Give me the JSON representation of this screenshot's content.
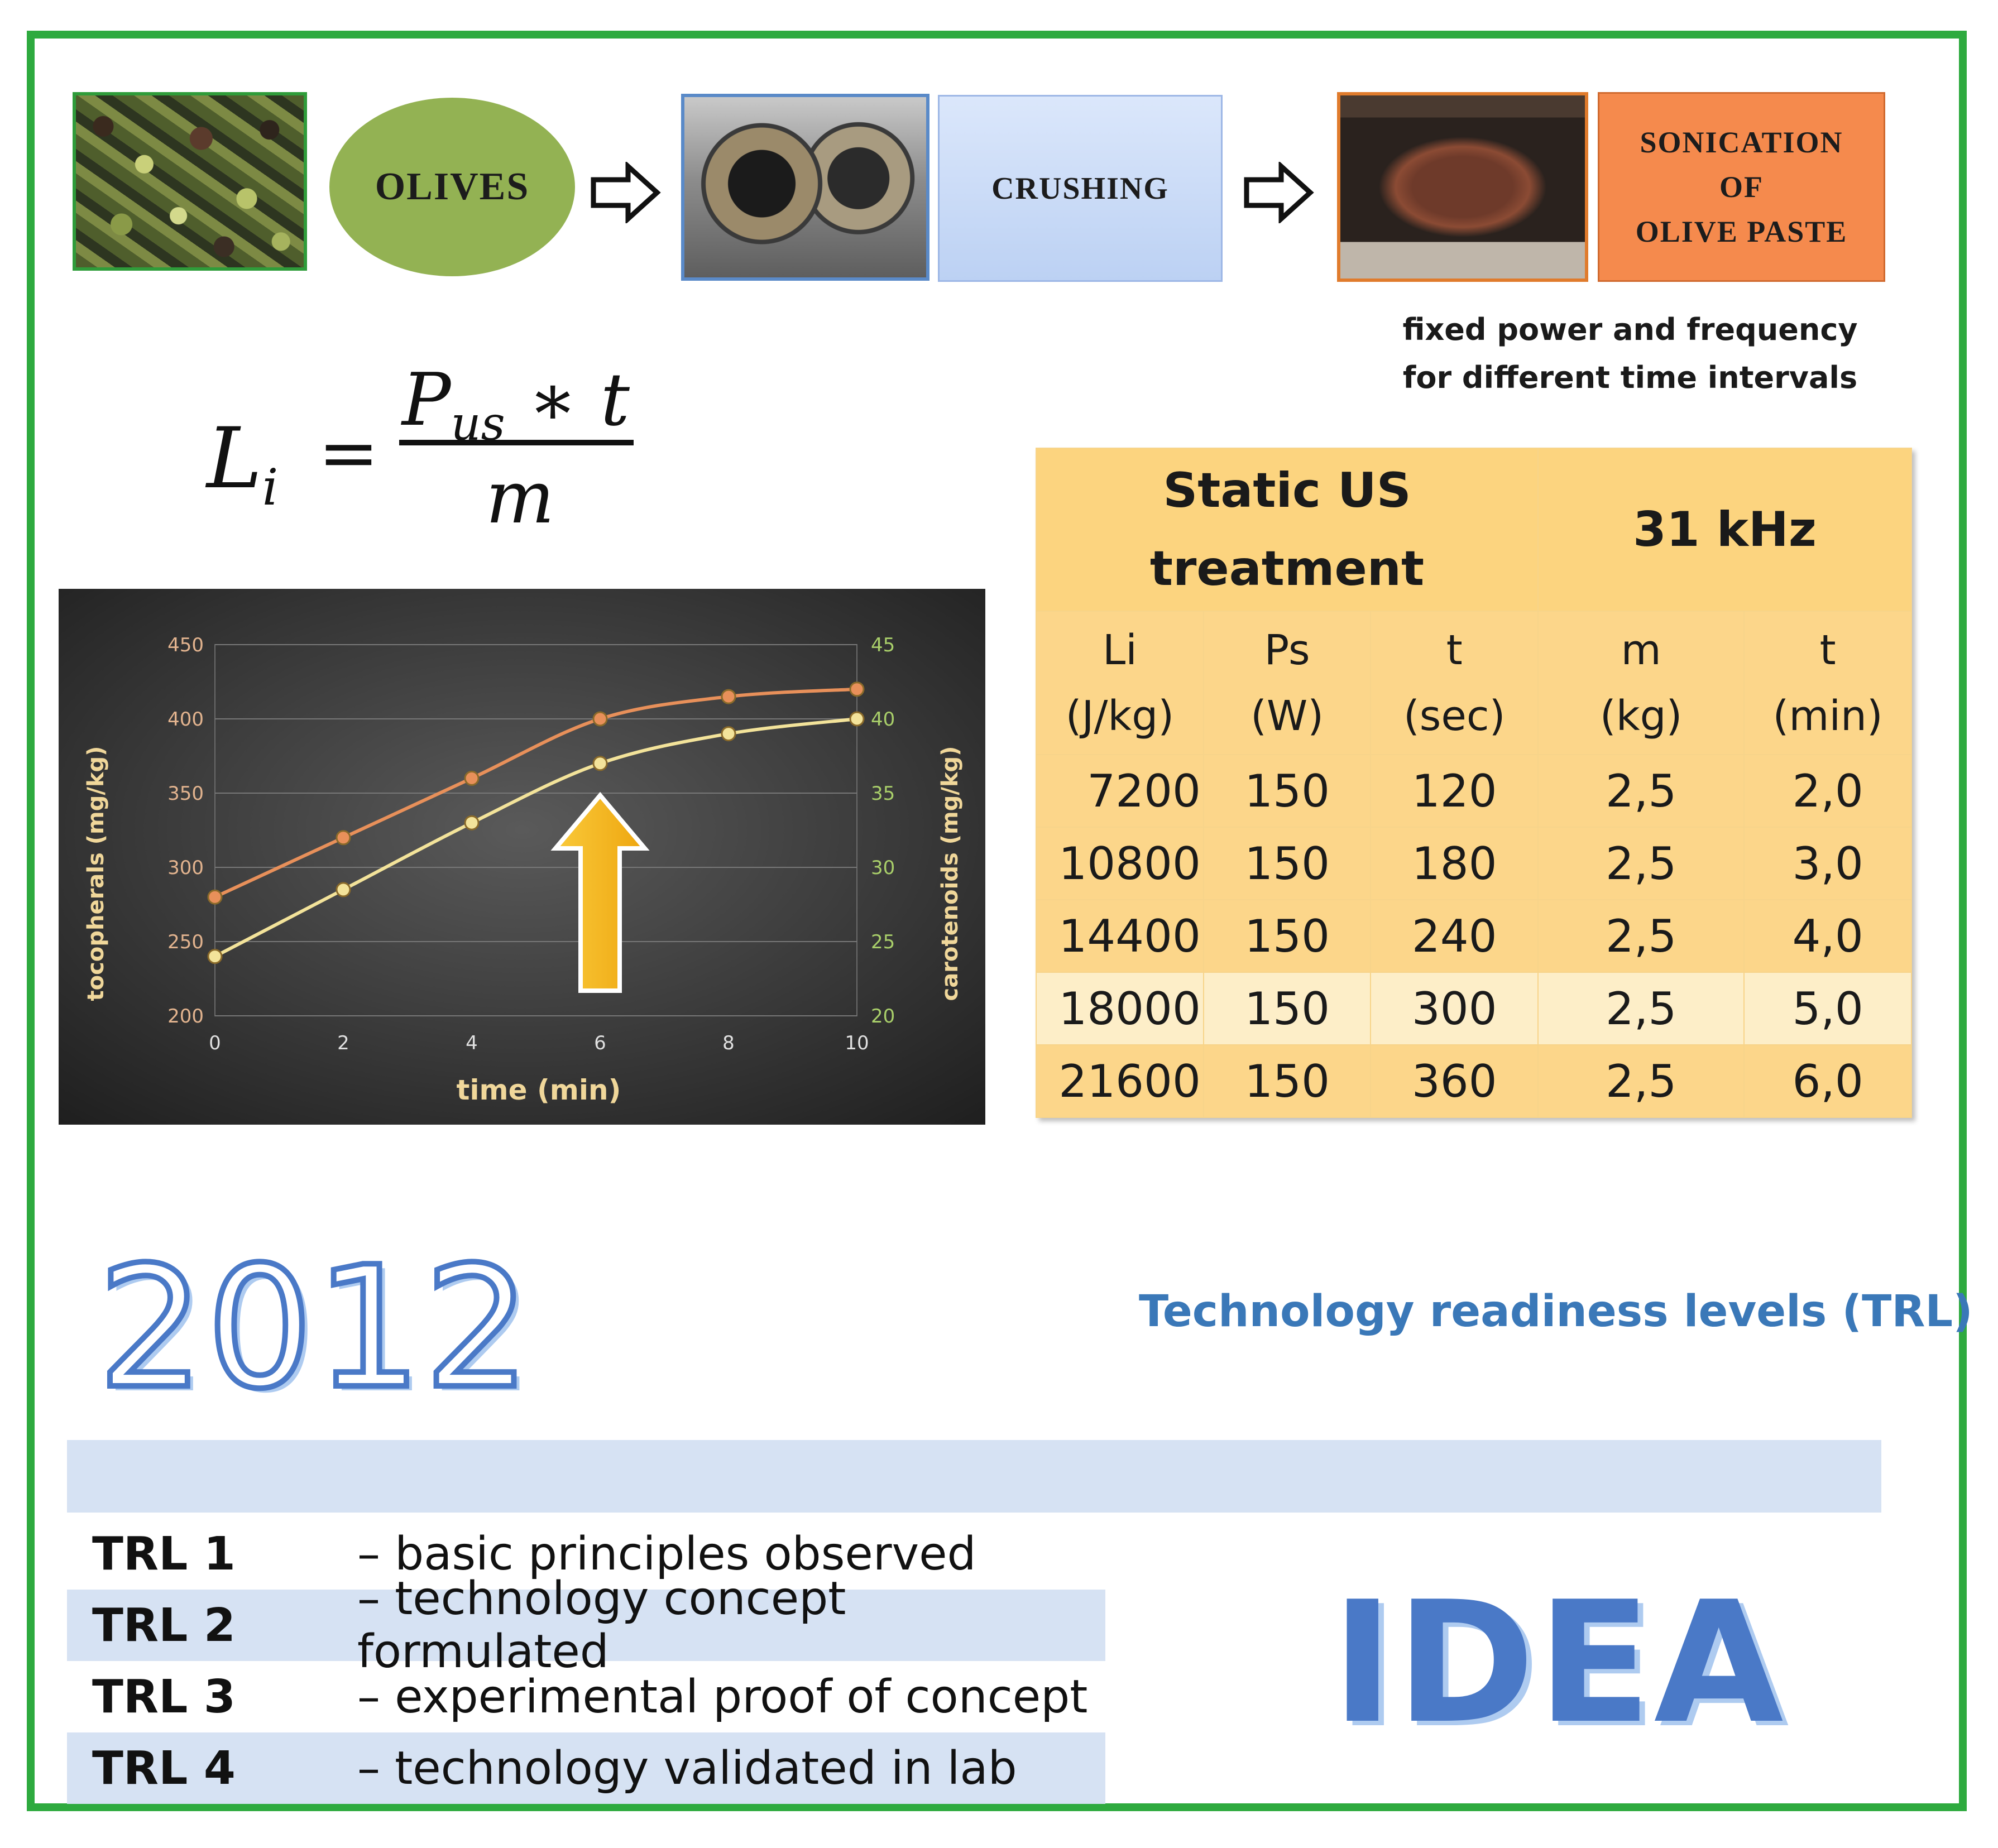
{
  "flow": {
    "olives_label": "OLIVES",
    "crushing_label": "CRUSHING",
    "sonication_lines": [
      "SONICATION",
      "OF",
      "OLIVE PASTE"
    ],
    "note_lines": [
      "fixed power and frequency",
      "for different time intervals"
    ]
  },
  "formula": {
    "lhs": "L",
    "lhs_sub": "i",
    "eq": "=",
    "num": "P",
    "num_sub": "us",
    "num_rest": " ∗ t",
    "den": "m"
  },
  "chart_data": {
    "type": "line",
    "title": "",
    "xlabel": "time (min)",
    "ylabel": "tocopherals (mg/kg)",
    "y2label": "carotenoids (mg/kg)",
    "x": [
      0,
      2,
      4,
      6,
      8,
      10
    ],
    "xlim": [
      0,
      10
    ],
    "ylim": [
      200,
      450
    ],
    "y2lim": [
      20,
      45
    ],
    "xticks": [
      "0",
      "2",
      "4",
      "6",
      "8",
      "10"
    ],
    "yticks": [
      "200",
      "250",
      "300",
      "350",
      "400",
      "450"
    ],
    "y2ticks": [
      "20",
      "25",
      "30",
      "35",
      "40",
      "45"
    ],
    "grid": true,
    "series": [
      {
        "axis": "left",
        "color": "#e8905a",
        "values": [
          280,
          320,
          360,
          400,
          415,
          420
        ]
      },
      {
        "axis": "right",
        "color": "#f3e39a",
        "values": [
          24,
          28.5,
          33,
          37,
          39,
          40
        ]
      }
    ],
    "annotation": {
      "type": "arrow",
      "x": 6,
      "color": "#f6b51c"
    }
  },
  "table": {
    "title_lines": [
      "Static US",
      "treatment"
    ],
    "frequency": "31 kHz",
    "columns": [
      [
        "Li",
        "(J/kg)"
      ],
      [
        "Ps",
        "(W)"
      ],
      [
        "t",
        "(sec)"
      ],
      [
        "m",
        "(kg)"
      ],
      [
        "t",
        "(min)"
      ]
    ],
    "rows": [
      [
        "7200",
        "150",
        "120",
        "2,5",
        "2,0"
      ],
      [
        "10800",
        "150",
        "180",
        "2,5",
        "3,0"
      ],
      [
        "14400",
        "150",
        "240",
        "2,5",
        "4,0"
      ],
      [
        "18000",
        "150",
        "300",
        "2,5",
        "5,0"
      ],
      [
        "21600",
        "150",
        "360",
        "2,5",
        "6,0"
      ]
    ],
    "highlight_row": 3
  },
  "year": "2012",
  "trl": {
    "heading": "Technology readiness levels (TRL)",
    "items": [
      {
        "code": "TRL 1",
        "desc": "– basic principles observed"
      },
      {
        "code": "TRL 2",
        "desc": "– technology concept formulated"
      },
      {
        "code": "TRL 3",
        "desc": "– experimental proof of concept"
      },
      {
        "code": "TRL 4",
        "desc": "– technology validated in lab"
      }
    ]
  },
  "idea": "IDEA",
  "colors": {
    "frame": "#2eaa3f",
    "olive_oval": "#93b253",
    "sonication_box": "#f58a4d",
    "table_fill": "#fcd68a",
    "trl_shade": "#d6e2f3",
    "accent_blue": "#4a79c7"
  }
}
